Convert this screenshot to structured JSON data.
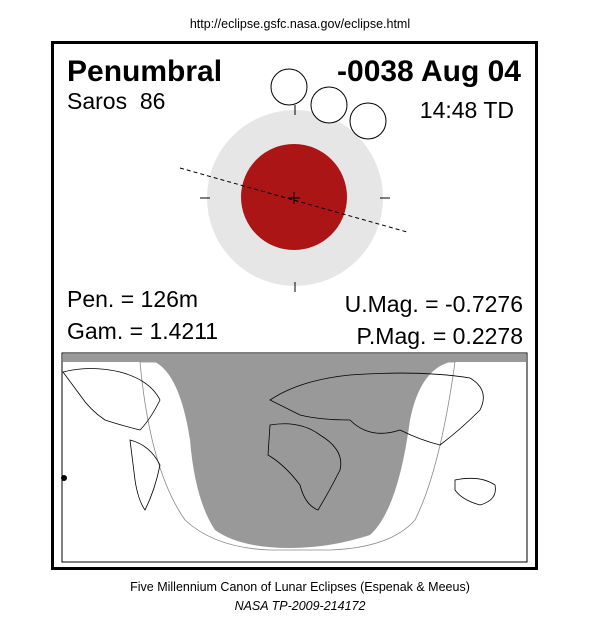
{
  "header": {
    "url": "http://eclipse.gsfc.nasa.gov/eclipse.html"
  },
  "eclipse": {
    "type": "Penumbral",
    "date": "-0038 Aug 04",
    "saros": "Saros  86",
    "time": "14:48 TD",
    "pen": "Pen. = 126m",
    "gam": "Gam. = 1.4211",
    "umag": "U.Mag. = -0.7276",
    "pmag": "P.Mag. = 0.2278"
  },
  "footer": {
    "line1": "Five Millennium Canon of Lunar Eclipses (Espenak & Meeus)",
    "line2": "NASA TP-2009-214172"
  }
}
